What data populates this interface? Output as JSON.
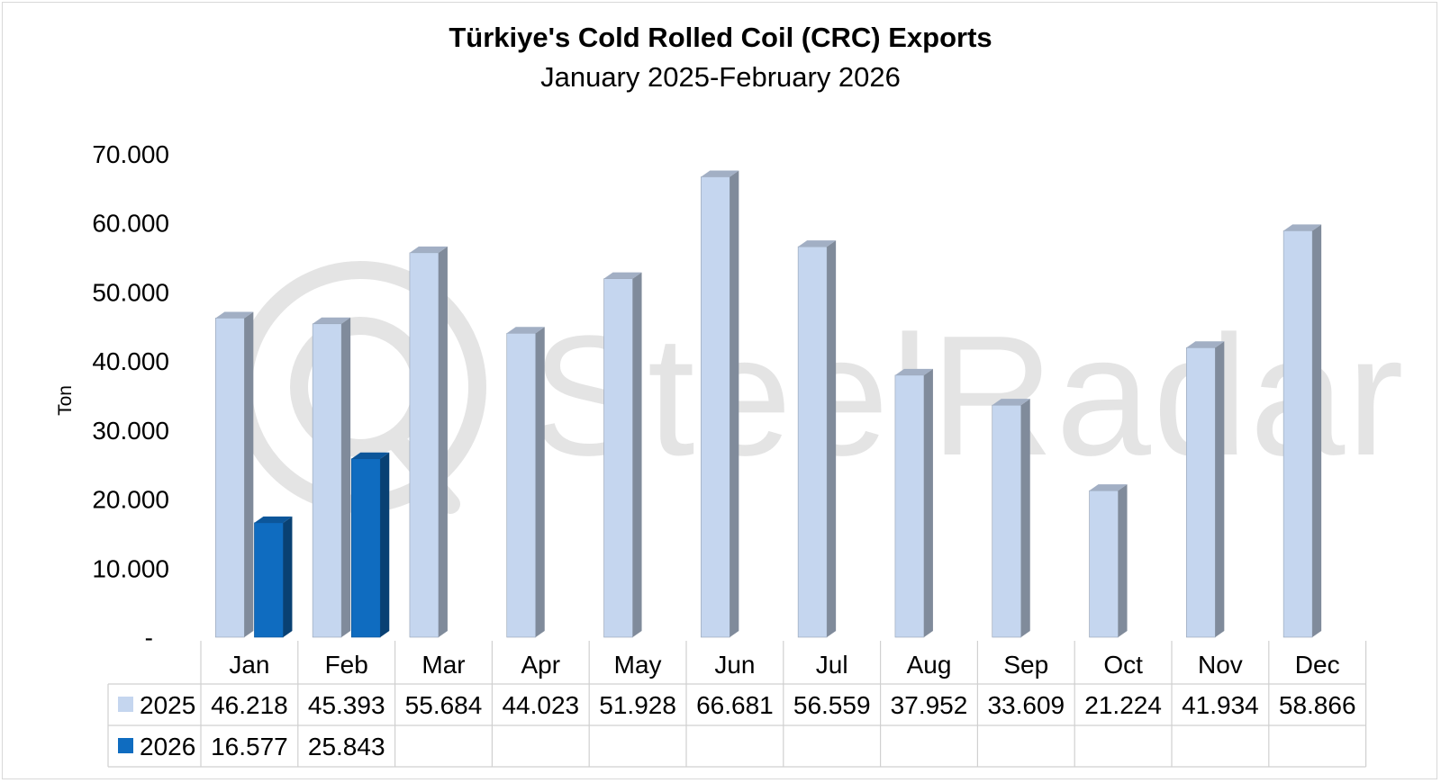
{
  "chart_data": {
    "type": "bar",
    "title": "Türkiye's Cold Rolled Coil (CRC) Exports",
    "subtitle": "January 2025-February 2026",
    "ylabel": "Ton",
    "ylim": [
      0,
      70000
    ],
    "yticks": [
      {
        "value": 0,
        "label": "-"
      },
      {
        "value": 10000,
        "label": "10.000"
      },
      {
        "value": 20000,
        "label": "20.000"
      },
      {
        "value": 30000,
        "label": "30.000"
      },
      {
        "value": 40000,
        "label": "40.000"
      },
      {
        "value": 50000,
        "label": "50.000"
      },
      {
        "value": 60000,
        "label": "60.000"
      },
      {
        "value": 70000,
        "label": "70.000"
      }
    ],
    "categories": [
      "Jan",
      "Feb",
      "Mar",
      "Apr",
      "May",
      "Jun",
      "Jul",
      "Aug",
      "Sep",
      "Oct",
      "Nov",
      "Dec"
    ],
    "series": [
      {
        "name": "2025",
        "color": "#c5d6ef",
        "values": [
          46218,
          45393,
          55684,
          44023,
          51928,
          66681,
          56559,
          37952,
          33609,
          21224,
          41934,
          58866
        ],
        "labels": [
          "46.218",
          "45.393",
          "55.684",
          "44.023",
          "51.928",
          "66.681",
          "56.559",
          "37.952",
          "33.609",
          "21.224",
          "41.934",
          "58.866"
        ]
      },
      {
        "name": "2026",
        "color": "#0f6cc0",
        "values": [
          16577,
          25843,
          null,
          null,
          null,
          null,
          null,
          null,
          null,
          null,
          null,
          null
        ],
        "labels": [
          "16.577",
          "25.843",
          "",
          "",
          "",
          "",
          "",
          "",
          "",
          "",
          "",
          ""
        ]
      }
    ],
    "data_table": true,
    "grid": false,
    "legend": "data-table",
    "bar_style": "3d"
  },
  "watermark": {
    "text": "SteelRadar"
  }
}
